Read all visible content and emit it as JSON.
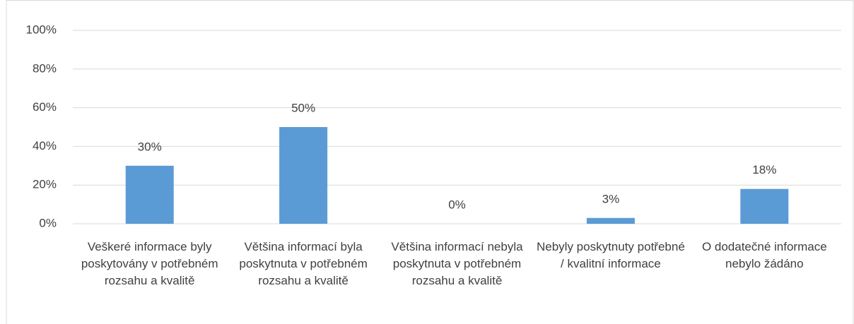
{
  "chart_data": {
    "type": "bar",
    "categories": [
      "Veškeré informace byly poskytovány v potřebném rozsahu a kvalitě",
      "Většina informací byla poskytnuta v potřebném rozsahu a kvalitě",
      "Většina informací nebyla poskytnuta v potřebném rozsahu a kvalitě",
      "Nebyly poskytnuty potřebné / kvalitní informace",
      "O dodatečné informace nebylo žádáno"
    ],
    "values": [
      30,
      50,
      0,
      3,
      18
    ],
    "value_labels": [
      "30%",
      "50%",
      "0%",
      "3%",
      "18%"
    ],
    "color": "#5b9bd5",
    "ylim": [
      0,
      100
    ],
    "yticks": [
      {
        "value": 0,
        "label": "0%"
      },
      {
        "value": 20,
        "label": "20%"
      },
      {
        "value": 40,
        "label": "40%"
      },
      {
        "value": 60,
        "label": "60%"
      },
      {
        "value": 80,
        "label": "80%"
      },
      {
        "value": 100,
        "label": "100%"
      }
    ],
    "grid": true
  }
}
